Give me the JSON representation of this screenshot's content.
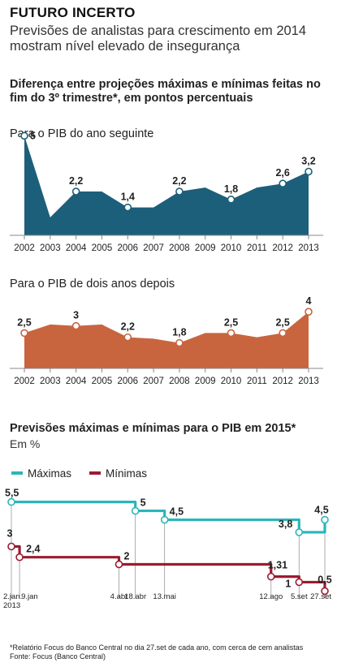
{
  "header": {
    "title": "FUTURO INCERTO",
    "subtitle": "Previsões de analistas para crescimento em 2014 mostram nível elevado de insegurança"
  },
  "section1": {
    "heading": "Diferença entre projeções máximas e mínimas feitas no fim do 3º trimestre*, em pontos percentuais"
  },
  "section2": {
    "heading": "Previsões máximas e mínimas para o PIB em 2015*",
    "unit": "Em %"
  },
  "footnote": {
    "note": "*Relatório Focus do Banco Central no dia 27.set de cada ano, com cerca de cem analistas",
    "source": "Fonte: Focus (Banco Central)"
  },
  "chart_data": [
    {
      "type": "area",
      "title": "Para o PIB do ano seguinte",
      "color": "#1c5f7a",
      "categories": [
        "2002",
        "2003",
        "2004",
        "2005",
        "2006",
        "2007",
        "2008",
        "2009",
        "2010",
        "2011",
        "2012",
        "2013"
      ],
      "values": [
        5,
        0.9,
        2.2,
        2.2,
        1.4,
        1.4,
        2.2,
        2.4,
        1.8,
        2.4,
        2.6,
        3.2
      ],
      "labels": [
        "5",
        "",
        "2,2",
        "",
        "1,4",
        "",
        "2,2",
        "",
        "1,8",
        "",
        "2,6",
        "3,2"
      ],
      "ylim": [
        0,
        5.3
      ]
    },
    {
      "type": "area",
      "title": "Para o PIB de dois anos depois",
      "color": "#c8653f",
      "categories": [
        "2002",
        "2003",
        "2004",
        "2005",
        "2006",
        "2007",
        "2008",
        "2009",
        "2010",
        "2011",
        "2012",
        "2013"
      ],
      "values": [
        2.5,
        3.1,
        3,
        3.1,
        2.2,
        2.1,
        1.8,
        2.5,
        2.5,
        2.2,
        2.5,
        4
      ],
      "labels": [
        "2,5",
        "",
        "3",
        "",
        "2,2",
        "",
        "1,8",
        "",
        "2,5",
        "",
        "2,5",
        "4"
      ],
      "ylim": [
        0,
        4.3
      ]
    },
    {
      "type": "line",
      "title": "Previsões máximas e mínimas para o PIB em 2015*",
      "ylabel": "Em %",
      "ylim": [
        0.2,
        5.8
      ],
      "dates": [
        "2.jan. 2013",
        "9.jan",
        "4.abr",
        "18.abr",
        "13.mai",
        "12.ago",
        "5.set",
        "27.set"
      ],
      "series": [
        {
          "name": "Máximas",
          "color": "#2bb5b8",
          "points": [
            [
              "2.jan. 2013",
              5.5
            ],
            [
              "18.abr",
              5.5
            ],
            [
              "18.abr",
              5
            ],
            [
              "13.mai",
              5
            ],
            [
              "13.mai",
              4.5
            ],
            [
              "5.set",
              4.5
            ],
            [
              "5.set",
              3.8
            ],
            [
              "27.set",
              4.5
            ]
          ],
          "labels": [
            [
              "2.jan. 2013",
              "5,5"
            ],
            [
              "18.abr",
              "5"
            ],
            [
              "13.mai",
              "4,5"
            ],
            [
              "5.set",
              "3,8"
            ],
            [
              "27.set",
              "4,5"
            ]
          ]
        },
        {
          "name": "Mínimas",
          "color": "#9b1b30",
          "points": [
            [
              "2.jan. 2013",
              3
            ],
            [
              "9.jan",
              2.4
            ],
            [
              "4.abr",
              2.4
            ],
            [
              "4.abr",
              2
            ],
            [
              "12.ago",
              2
            ],
            [
              "12.ago",
              1.31
            ],
            [
              "5.set",
              1.31
            ],
            [
              "5.set",
              1
            ],
            [
              "27.set",
              0.5
            ]
          ],
          "labels": [
            [
              "2.jan. 2013",
              "3"
            ],
            [
              "9.jan",
              "2,4"
            ],
            [
              "4.abr",
              "2"
            ],
            [
              "12.ago",
              "1,31"
            ],
            [
              "5.set",
              "1"
            ],
            [
              "27.set",
              "0,5"
            ]
          ]
        }
      ]
    }
  ]
}
